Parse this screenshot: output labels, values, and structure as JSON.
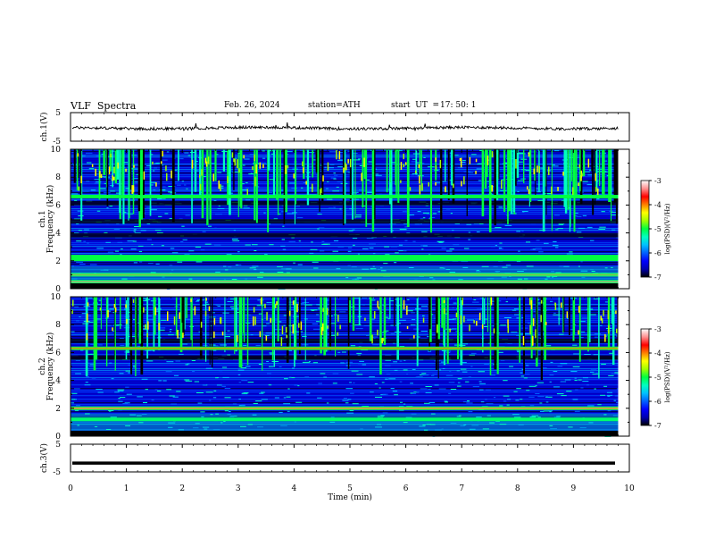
{
  "header": {
    "title": "VLF  Spectra",
    "date": "Feb. 26, 2024",
    "station": "station=ATH",
    "start_label": "start  UT  =",
    "start_time": "17: 50: 1"
  },
  "colors": {
    "trace": "#000000",
    "colormap": [
      "#000000",
      "#0000b0",
      "#0000ff",
      "#0060ff",
      "#00c0ff",
      "#00ffc0",
      "#00ff40",
      "#a0ff00",
      "#ffff00",
      "#ff8000",
      "#ff0000",
      "#ff9090",
      "#ffffff"
    ]
  },
  "chart_data": [
    {
      "type": "line",
      "panel": "ch1",
      "ylabel": "ch.1(V)",
      "ylim": [
        -5,
        5
      ],
      "yticks": [
        "5",
        "-5"
      ],
      "xlim": [
        0,
        10
      ],
      "level": -0.4,
      "noise_amplitude": 0.6
    },
    {
      "type": "heatmap",
      "panel": "ch1",
      "ylabel_channel": "ch.1",
      "ylabel": "Frequency  (kHz)",
      "ylim": [
        0,
        10
      ],
      "yticks": [
        "0",
        "2",
        "4",
        "6",
        "8",
        "10"
      ],
      "xlim": [
        0,
        10
      ],
      "data_end_min": 9.8,
      "colorbar": {
        "label": "log(PSD)(V²/Hz)",
        "range": [
          -7,
          -3
        ],
        "ticks": [
          "-3",
          "-4",
          "-5",
          "-6",
          "-7"
        ]
      },
      "strong_bands_khz": [
        0.5,
        1.0,
        2.1,
        2.3,
        6.6
      ],
      "dark_bands_khz": [
        3.8,
        4.8,
        6.1
      ]
    },
    {
      "type": "heatmap",
      "panel": "ch2",
      "ylabel_channel": "ch.2",
      "ylabel": "Frequency  (kHz)",
      "ylim": [
        0,
        10
      ],
      "yticks": [
        "0",
        "2",
        "4",
        "6",
        "8",
        "10"
      ],
      "xlim": [
        0,
        10
      ],
      "data_end_min": 9.8,
      "colorbar": {
        "label": "log(PSD)(V²/Hz)",
        "range": [
          -7,
          -3
        ],
        "ticks": [
          "-3",
          "-4",
          "-5",
          "-6",
          "-7"
        ]
      },
      "strong_bands_khz": [
        2.0,
        6.3,
        1.2
      ],
      "dark_bands_khz": [
        5.6,
        6.8
      ]
    },
    {
      "type": "line",
      "panel": "ch3",
      "ylabel": "ch.3(V)",
      "ylim": [
        -5,
        5
      ],
      "yticks": [
        "5",
        "-5"
      ],
      "xlim": [
        0,
        10
      ],
      "level": -1.8,
      "noise_amplitude": 0.0
    }
  ],
  "xaxis": {
    "label": "Time  (min)",
    "ticks": [
      "0",
      "1",
      "2",
      "3",
      "4",
      "5",
      "6",
      "7",
      "8",
      "9",
      "10"
    ]
  }
}
